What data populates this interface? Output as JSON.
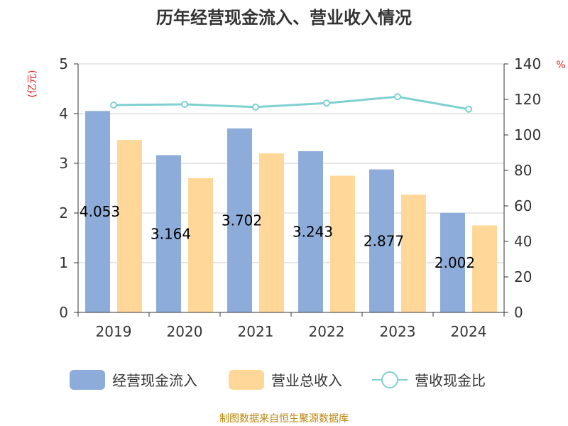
{
  "chart_data": {
    "type": "bar",
    "title": "历年经营现金流入、营业收入情况",
    "left_unit": "(亿元)",
    "right_unit": "%",
    "categories": [
      "2019",
      "2020",
      "2021",
      "2022",
      "2023",
      "2024"
    ],
    "series": [
      {
        "name": "经营现金流入",
        "type": "bar",
        "axis": "left",
        "color": "#8eacd9",
        "values": [
          4.053,
          3.164,
          3.702,
          3.243,
          2.877,
          2.002
        ],
        "labels": [
          "4.053",
          "3.164",
          "3.702",
          "3.243",
          "2.877",
          "2.002"
        ]
      },
      {
        "name": "营业总收入",
        "type": "bar",
        "axis": "left",
        "color": "#ffd899",
        "values": [
          3.47,
          2.7,
          3.2,
          2.75,
          2.37,
          1.75
        ]
      },
      {
        "name": "营收现金比",
        "type": "line",
        "axis": "right",
        "color": "#7fd0d0",
        "values": [
          116.8,
          117.2,
          115.7,
          117.9,
          121.5,
          114.5
        ]
      }
    ],
    "left_axis": {
      "min": 0,
      "max": 5,
      "ticks": [
        "0",
        "1",
        "2",
        "3",
        "4",
        "5"
      ]
    },
    "right_axis": {
      "min": 0,
      "max": 140,
      "ticks": [
        "0",
        "20",
        "40",
        "60",
        "80",
        "100",
        "120",
        "140"
      ]
    },
    "grid": true,
    "legend_position": "bottom"
  },
  "source": "制图数据来自恒生聚源数据库"
}
